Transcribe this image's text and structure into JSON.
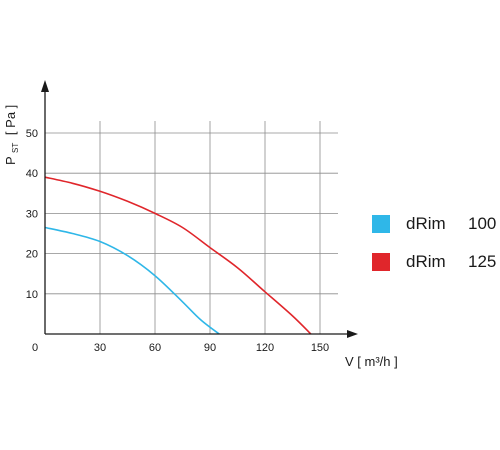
{
  "chart_data": {
    "type": "line",
    "title": "",
    "xlabel": "V [ m³/h ]",
    "ylabel_main": "P",
    "ylabel_sub": "ST",
    "ylabel_unit": "[ Pa ]",
    "xlim": [
      0,
      170
    ],
    "ylim": [
      0,
      58
    ],
    "xticks": [
      0,
      30,
      60,
      90,
      120,
      150
    ],
    "yticks": [
      10,
      20,
      30,
      40,
      50
    ],
    "grid": true,
    "legend_position": "right",
    "series": [
      {
        "name": "dRim 100",
        "legend_name": "dRim",
        "legend_size": "100",
        "color": "#2fb7e8",
        "x": [
          0,
          15,
          30,
          45,
          60,
          75,
          85,
          95
        ],
        "y": [
          26.5,
          25.0,
          23.0,
          19.5,
          14.5,
          8.0,
          3.5,
          0
        ]
      },
      {
        "name": "dRim 125",
        "legend_name": "dRim",
        "legend_size": "125",
        "color": "#e0262b",
        "x": [
          0,
          15,
          30,
          45,
          60,
          75,
          90,
          105,
          120,
          135,
          145
        ],
        "y": [
          39.0,
          37.5,
          35.5,
          33.0,
          30.0,
          26.5,
          21.5,
          16.5,
          10.5,
          4.5,
          0
        ]
      }
    ]
  }
}
